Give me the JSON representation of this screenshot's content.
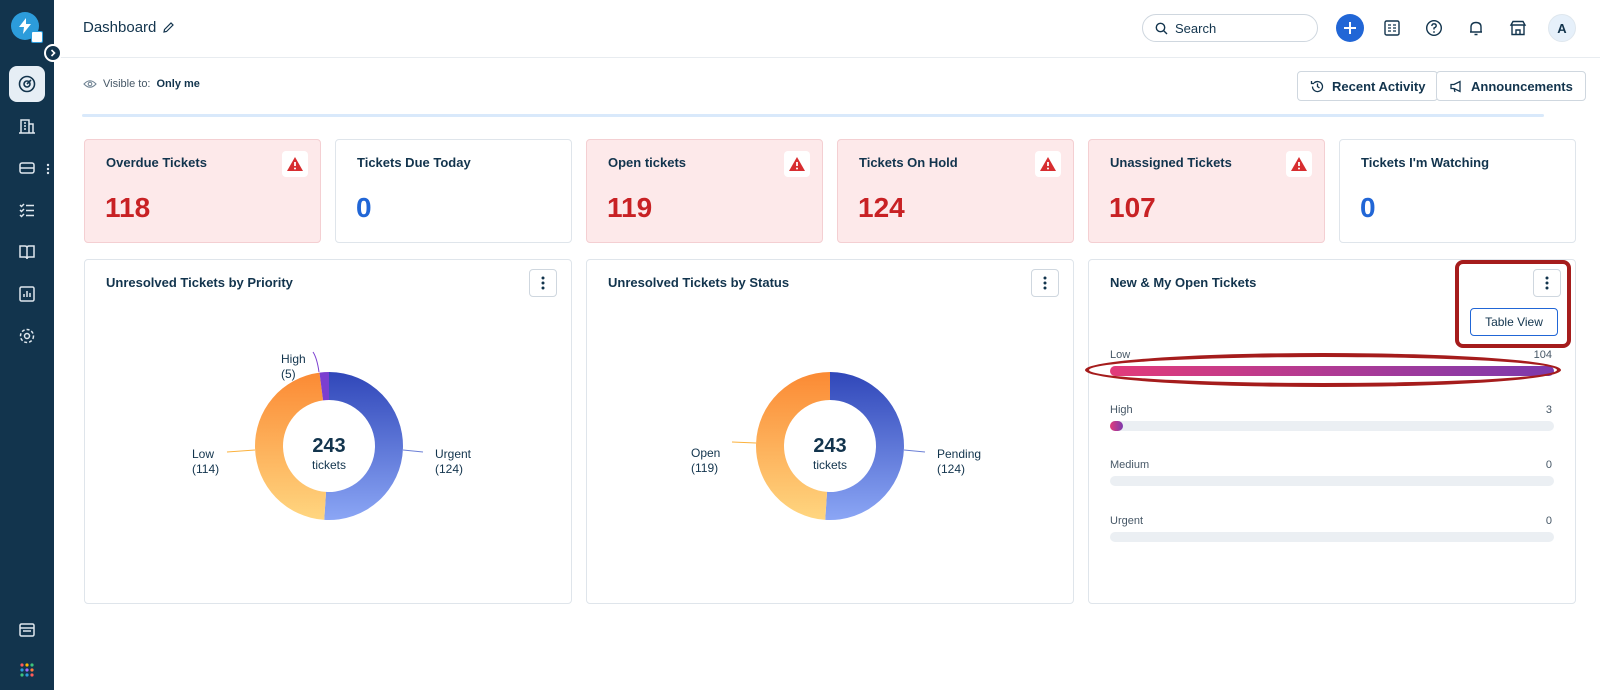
{
  "header": {
    "title": "Dashboard",
    "search_placeholder": "Search",
    "avatar_initial": "A"
  },
  "subheader": {
    "visible_label": "Visible to:",
    "visible_value": "Only me",
    "recent_activity": "Recent Activity",
    "announcements": "Announcements"
  },
  "cards": [
    {
      "title": "Overdue Tickets",
      "value": "118",
      "alert": true
    },
    {
      "title": "Tickets Due Today",
      "value": "0",
      "alert": false
    },
    {
      "title": "Open tickets",
      "value": "119",
      "alert": true
    },
    {
      "title": "Tickets On Hold",
      "value": "124",
      "alert": true
    },
    {
      "title": "Unassigned Tickets",
      "value": "107",
      "alert": true
    },
    {
      "title": "Tickets I'm Watching",
      "value": "0",
      "alert": false
    }
  ],
  "panels": {
    "priority": {
      "title": "Unresolved Tickets by Priority",
      "center_value": "243",
      "center_label": "tickets",
      "labels": {
        "high": "High",
        "high_count": "(5)",
        "low": "Low",
        "low_count": "(114)",
        "urgent": "Urgent",
        "urgent_count": "(124)"
      }
    },
    "status": {
      "title": "Unresolved Tickets by Status",
      "center_value": "243",
      "center_label": "tickets",
      "labels": {
        "open": "Open",
        "open_count": "(119)",
        "pending": "Pending",
        "pending_count": "(124)"
      }
    },
    "new_open": {
      "title": "New & My Open Tickets",
      "table_view": "Table View",
      "bars": [
        {
          "label": "Low",
          "count": "104"
        },
        {
          "label": "High",
          "count": "3"
        },
        {
          "label": "Medium",
          "count": "0"
        },
        {
          "label": "Urgent",
          "count": "0"
        }
      ]
    }
  },
  "chart_data": [
    {
      "type": "pie",
      "title": "Unresolved Tickets by Priority",
      "categories": [
        "Urgent",
        "Low",
        "High"
      ],
      "values": [
        124,
        114,
        5
      ],
      "colors": [
        "#3f55c9",
        "#fbb13c",
        "#7b3fd0"
      ]
    },
    {
      "type": "pie",
      "title": "Unresolved Tickets by Status",
      "categories": [
        "Pending",
        "Open"
      ],
      "values": [
        124,
        119
      ],
      "colors": [
        "#3f55c9",
        "#fbb13c"
      ]
    },
    {
      "type": "bar",
      "title": "New & My Open Tickets",
      "categories": [
        "Low",
        "High",
        "Medium",
        "Urgent"
      ],
      "values": [
        104,
        3,
        0,
        0
      ],
      "xlim": [
        0,
        104
      ]
    }
  ],
  "colors": {
    "sidebar": "#12344d",
    "primary": "#2166d6",
    "alert_bg": "#fde9ea",
    "alert_text": "#c82124",
    "highlight": "#a51c1c"
  }
}
